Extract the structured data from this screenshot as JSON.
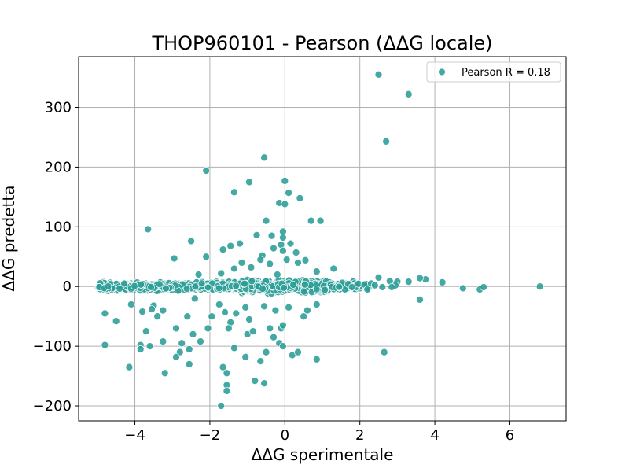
{
  "chart_data": {
    "type": "scatter",
    "title": "THOP960101 - Pearson (ΔΔG locale)",
    "xlabel": "ΔΔG sperimentale",
    "ylabel": "ΔΔG predetta",
    "xlim": [
      -5.5,
      7.5
    ],
    "ylim": [
      -225,
      385
    ],
    "xticks": [
      -4,
      -2,
      0,
      2,
      4,
      6
    ],
    "yticks": [
      -200,
      -100,
      0,
      100,
      200,
      300
    ],
    "xtick_labels": [
      "−4",
      "−2",
      "0",
      "2",
      "4",
      "6"
    ],
    "ytick_labels": [
      "−200",
      "−100",
      "0",
      "100",
      "200",
      "300"
    ],
    "grid": true,
    "legend": {
      "label": "Pearson R = 0.18",
      "placement": "top-right"
    },
    "colors": {
      "point": "#2a9d96",
      "point_edge": "#ffffff",
      "grid": "#b0b0b0"
    },
    "series": [
      {
        "name": "Pearson R = 0.18",
        "points": [
          [
            2.5,
            355
          ],
          [
            3.3,
            322
          ],
          [
            2.7,
            243
          ],
          [
            -0.55,
            216
          ],
          [
            -2.1,
            194
          ],
          [
            0,
            177
          ],
          [
            -0.95,
            175
          ],
          [
            -1.35,
            158
          ],
          [
            0.1,
            157
          ],
          [
            0.4,
            148
          ],
          [
            -0.15,
            140
          ],
          [
            0,
            138
          ],
          [
            0.7,
            110
          ],
          [
            0.95,
            110
          ],
          [
            -0.5,
            110
          ],
          [
            -3.65,
            96
          ],
          [
            -0.05,
            92
          ],
          [
            -0.75,
            86
          ],
          [
            -0.35,
            85
          ],
          [
            -0.05,
            82
          ],
          [
            -2.5,
            76
          ],
          [
            -1.2,
            72
          ],
          [
            -1.45,
            68
          ],
          [
            0.15,
            72
          ],
          [
            -0.1,
            70
          ],
          [
            -0.3,
            64
          ],
          [
            -1.65,
            62
          ],
          [
            -0.05,
            60
          ],
          [
            0.3,
            57
          ],
          [
            -0.6,
            52
          ],
          [
            -2.1,
            50
          ],
          [
            -2.95,
            47
          ],
          [
            -0.65,
            45
          ],
          [
            0.05,
            45
          ],
          [
            0.55,
            44
          ],
          [
            -1.15,
            40
          ],
          [
            -0.4,
            38
          ],
          [
            0.35,
            40
          ],
          [
            -1.35,
            30
          ],
          [
            -0.9,
            32
          ],
          [
            -1.7,
            22
          ],
          [
            -0.2,
            20
          ],
          [
            1.3,
            30
          ],
          [
            0.85,
            25
          ],
          [
            -2.3,
            20
          ],
          [
            -4.8,
            -45
          ],
          [
            -4.5,
            -58
          ],
          [
            -4.1,
            -30
          ],
          [
            -3.8,
            -42
          ],
          [
            -3.7,
            -75
          ],
          [
            -3.5,
            -32
          ],
          [
            -3.4,
            -50
          ],
          [
            -3.25,
            -40
          ],
          [
            -3.6,
            -100
          ],
          [
            -3.85,
            -98
          ],
          [
            -3.85,
            -105
          ],
          [
            -4.8,
            -98
          ],
          [
            -4.15,
            -135
          ],
          [
            -3.2,
            -145
          ],
          [
            -3.25,
            -92
          ],
          [
            -2.9,
            -70
          ],
          [
            -2.75,
            -95
          ],
          [
            -2.8,
            -110
          ],
          [
            -2.6,
            -50
          ],
          [
            -2.45,
            -80
          ],
          [
            -2.25,
            -92
          ],
          [
            -2.05,
            -70
          ],
          [
            -1.95,
            -50
          ],
          [
            -2.4,
            -20
          ],
          [
            -1.75,
            -30
          ],
          [
            -1.6,
            -43
          ],
          [
            -1.45,
            -60
          ],
          [
            -1.35,
            -103
          ],
          [
            -1.65,
            -135
          ],
          [
            -1.55,
            -145
          ],
          [
            -1.55,
            -165
          ],
          [
            -1.55,
            -175
          ],
          [
            -1.7,
            -200
          ],
          [
            -1.05,
            -35
          ],
          [
            -0.95,
            -55
          ],
          [
            -1.0,
            -80
          ],
          [
            -0.85,
            -75
          ],
          [
            -0.55,
            -33
          ],
          [
            -0.4,
            -70
          ],
          [
            -0.3,
            -85
          ],
          [
            -0.15,
            -95
          ],
          [
            -0.1,
            -70
          ],
          [
            -0.05,
            -65
          ],
          [
            -0.5,
            -110
          ],
          [
            -0.65,
            -125
          ],
          [
            -0.55,
            -162
          ],
          [
            -0.8,
            -158
          ],
          [
            -1.05,
            -118
          ],
          [
            0.2,
            -115
          ],
          [
            0.35,
            -110
          ],
          [
            0.5,
            -50
          ],
          [
            0.6,
            -40
          ],
          [
            0.85,
            -30
          ],
          [
            0.85,
            -122
          ],
          [
            2.65,
            -110
          ],
          [
            3.6,
            -22
          ],
          [
            0.1,
            -35
          ],
          [
            -0.05,
            -100
          ],
          [
            -2.9,
            -118
          ],
          [
            -2.55,
            -105
          ],
          [
            -2.55,
            -130
          ],
          [
            -1.5,
            -70
          ],
          [
            -1.3,
            -45
          ],
          [
            -0.25,
            -40
          ],
          [
            -3.55,
            -38
          ],
          [
            4.2,
            7
          ],
          [
            4.75,
            -3
          ],
          [
            5.2,
            -5
          ],
          [
            5.3,
            -1
          ],
          [
            6.8,
            0
          ],
          [
            3.75,
            12
          ],
          [
            3.6,
            14
          ],
          [
            3.3,
            8
          ],
          [
            3.0,
            8
          ],
          [
            2.95,
            2
          ],
          [
            2.8,
            9
          ],
          [
            2.5,
            15
          ],
          [
            2.3,
            5
          ],
          [
            2.2,
            -5
          ],
          [
            2.4,
            2
          ],
          [
            2.6,
            -1
          ],
          [
            2.85,
            -1
          ]
        ]
      }
    ]
  }
}
